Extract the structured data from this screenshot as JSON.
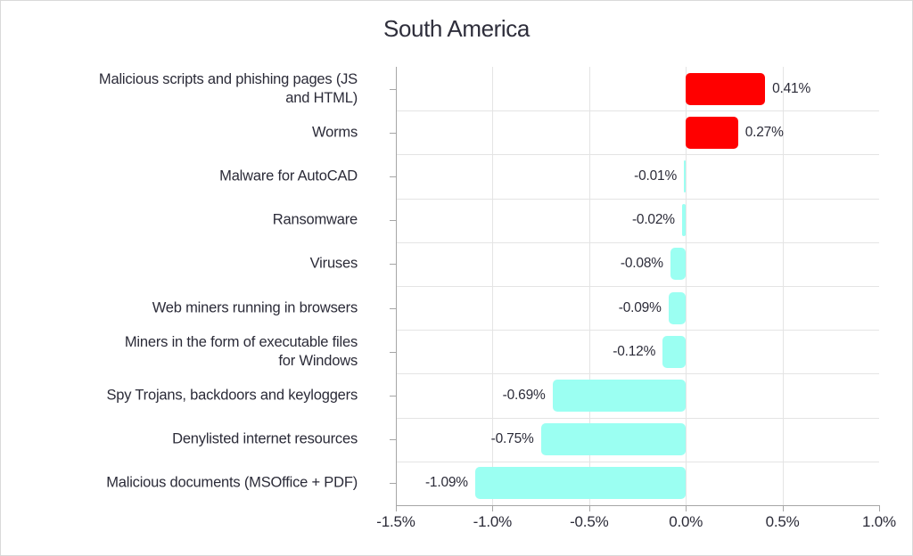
{
  "title": "South America",
  "chart_data": {
    "type": "bar",
    "orientation": "horizontal",
    "title": "South America",
    "xlabel": "",
    "ylabel": "",
    "categories": [
      "Malicious scripts and phishing pages (JS\nand HTML)",
      "Worms",
      "Malware for AutoCAD",
      "Ransomware",
      "Viruses",
      "Web miners running in browsers",
      "Miners in the form of executable files\nfor Windows",
      "Spy Trojans, backdoors and keyloggers",
      "Denylisted internet resources",
      "Malicious documents (MSOffice + PDF)"
    ],
    "values": [
      0.41,
      0.27,
      -0.01,
      -0.02,
      -0.08,
      -0.09,
      -0.12,
      -0.69,
      -0.75,
      -1.09
    ],
    "value_labels": [
      "0.41%",
      "0.27%",
      "-0.01%",
      "-0.02%",
      "-0.08%",
      "-0.09%",
      "-0.12%",
      "-0.69%",
      "-0.75%",
      "-1.09%"
    ],
    "xlim": [
      -1.5,
      1.0
    ],
    "x_tick_values": [
      -1.5,
      -1.0,
      -0.5,
      0.0,
      0.5,
      1.0
    ],
    "x_tick_labels": [
      "-1.5%",
      "-1.0%",
      "-0.5%",
      "0.0%",
      "0.5%",
      "1.0%"
    ],
    "grid": true,
    "legend": "none",
    "colors": {
      "positive_bar": "#ff0000",
      "negative_bar": "#9bfff2",
      "grid": "#e4e4e4",
      "axis": "#a6a6a6",
      "text": "#2b2b38"
    }
  }
}
